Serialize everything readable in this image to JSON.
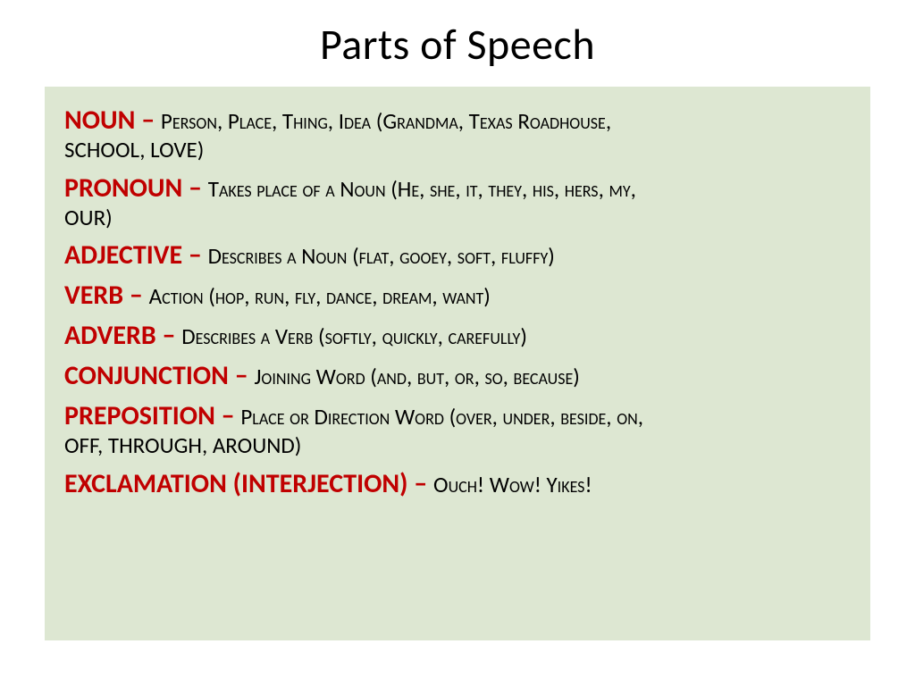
{
  "slide": {
    "title": "Parts of Speech",
    "background_color": "#ffffff",
    "box_background": "#dde7d2",
    "term_color": "#c00000",
    "text_color": "#000000",
    "title_fontsize": 48,
    "term_fontsize": 30,
    "definition_fontsize": 25,
    "entries": [
      {
        "term": "Noun",
        "dash": " – ",
        "definition_lead": "Person, Place, Thing, Idea (Grandma, Texas Roadhouse, ",
        "definition_cont": "school, love)"
      },
      {
        "term": "Pronoun",
        "dash": " – ",
        "definition_lead": "Takes place of a Noun  (He, she, it, they, his, hers, my, ",
        "definition_cont": "our)"
      },
      {
        "term": "Adjective",
        "dash": " – ",
        "definition_lead": "Describes a Noun (flat, gooey, soft, fluffy)",
        "definition_cont": ""
      },
      {
        "term": "Verb",
        "dash": " – ",
        "definition_lead": "Action (hop, run, fly, dance, dream, want)",
        "definition_cont": ""
      },
      {
        "term": "Adverb",
        "dash": " – ",
        "definition_lead": "Describes a Verb (softly, quickly, carefully)",
        "definition_cont": ""
      },
      {
        "term": "Conjunction",
        "dash": " – ",
        "definition_lead": "Joining Word (and, but, or, so, because)",
        "definition_cont": ""
      },
      {
        "term": "Preposition",
        "dash": " – ",
        "definition_lead": "Place or Direction Word (over, under, beside, on, ",
        "definition_cont": "off, through, around)"
      },
      {
        "term": "Exclamation (Interjection)",
        "dash": " – ",
        "definition_lead": "Ouch! Wow! Yikes!",
        "definition_cont": ""
      }
    ]
  }
}
